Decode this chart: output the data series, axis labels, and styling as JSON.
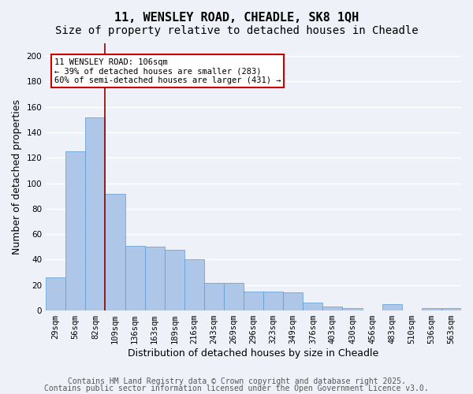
{
  "title": "11, WENSLEY ROAD, CHEADLE, SK8 1QH",
  "subtitle": "Size of property relative to detached houses in Cheadle",
  "xlabel": "Distribution of detached houses by size in Cheadle",
  "ylabel": "Number of detached properties",
  "categories": [
    "29sqm",
    "56sqm",
    "82sqm",
    "109sqm",
    "136sqm",
    "163sqm",
    "189sqm",
    "216sqm",
    "243sqm",
    "269sqm",
    "296sqm",
    "323sqm",
    "349sqm",
    "376sqm",
    "403sqm",
    "430sqm",
    "456sqm",
    "483sqm",
    "510sqm",
    "536sqm",
    "563sqm"
  ],
  "values": [
    26,
    125,
    152,
    92,
    51,
    50,
    48,
    40,
    22,
    22,
    15,
    15,
    14,
    6,
    3,
    2,
    0,
    5,
    0,
    2,
    2
  ],
  "bar_color": "#aec6e8",
  "bar_edge_color": "#5b9bd5",
  "vline_pos": 2.5,
  "vline_color": "#8b0000",
  "annotation_text": "11 WENSLEY ROAD: 106sqm\n← 39% of detached houses are smaller (283)\n60% of semi-detached houses are larger (431) →",
  "annotation_box_color": "#ffffff",
  "annotation_box_edge_color": "#cc0000",
  "ylim": [
    0,
    210
  ],
  "yticks": [
    0,
    20,
    40,
    60,
    80,
    100,
    120,
    140,
    160,
    180,
    200
  ],
  "footer1": "Contains HM Land Registry data © Crown copyright and database right 2025.",
  "footer2": "Contains public sector information licensed under the Open Government Licence v3.0.",
  "bg_color": "#eef2f8",
  "grid_color": "#ffffff",
  "title_fontsize": 11,
  "subtitle_fontsize": 10,
  "xlabel_fontsize": 9,
  "ylabel_fontsize": 9,
  "tick_fontsize": 7.5,
  "annotation_fontsize": 7.5,
  "footer_fontsize": 7
}
